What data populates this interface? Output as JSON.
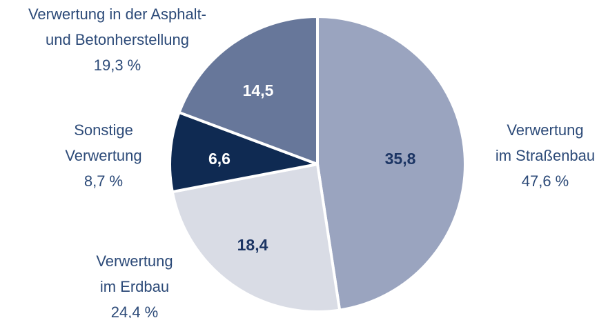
{
  "chart_data": {
    "type": "pie",
    "categories": [
      [
        "Verwertung",
        "im Straßenbau"
      ],
      [
        "Verwertung",
        "im Erdbau"
      ],
      [
        "Sonstige",
        "Verwertung"
      ],
      [
        "Verwertung in der Asphalt-",
        "und Betonherstellung"
      ]
    ],
    "values": [
      35.8,
      18.4,
      6.6,
      14.5
    ],
    "value_labels": [
      "35,8",
      "18,4",
      "6,6",
      "14,5"
    ],
    "percents": [
      47.6,
      24.4,
      8.7,
      19.3
    ],
    "percent_labels": [
      "47,6 %",
      "24,4 %",
      "8,7 %",
      "19,3 %"
    ],
    "colors": [
      "#9aa4bf",
      "#d9dce5",
      "#0f2a52",
      "#67779a"
    ],
    "value_label_colors": [
      "#1c3564",
      "#1c3564",
      "#ffffff",
      "#ffffff"
    ]
  }
}
